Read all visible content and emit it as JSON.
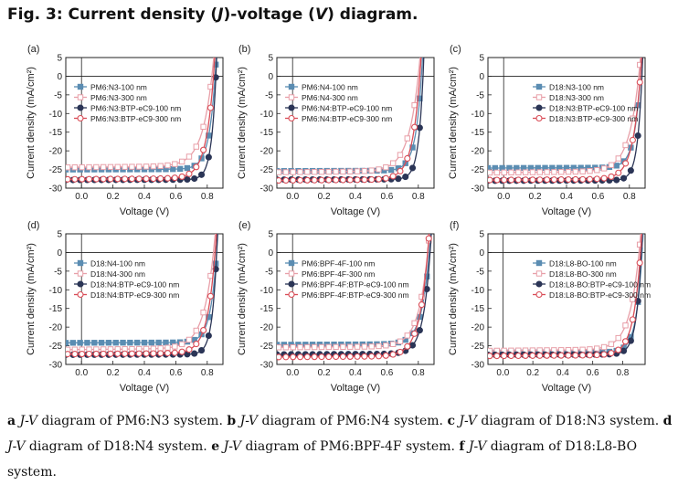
{
  "header": {
    "title_prefix": "Fig. 3: Current density (",
    "title_j": "J",
    "title_mid": ")-voltage (",
    "title_v": "V",
    "title_suffix": ") diagram."
  },
  "caption": {
    "items": [
      {
        "letter": "a",
        "text": "diagram of PM6:N3 system."
      },
      {
        "letter": "b",
        "text": "diagram of PM6:N4 system."
      },
      {
        "letter": "c",
        "text": "diagram of D18:N3 system."
      },
      {
        "letter": "d",
        "text": "diagram of D18:N4 system."
      },
      {
        "letter": "e",
        "text": "diagram of PM6:BPF-4F system."
      },
      {
        "letter": "f",
        "text": "diagram of D18:L8-BO system."
      }
    ],
    "jv": "J-V"
  },
  "colors": {
    "s1": "#5b8db2",
    "s2": "#e89fa8",
    "s3": "#2b3556",
    "s4": "#d94d57",
    "axis": "#222222"
  },
  "chart_data": [
    {
      "panel": "(a)",
      "type": "line",
      "xlabel": "Voltage (V)",
      "ylabel": "Current density (mA/cm²)",
      "xlim": [
        -0.1,
        0.9
      ],
      "ylim": [
        -30,
        5
      ],
      "xticks": [
        0.0,
        0.2,
        0.4,
        0.6,
        0.8
      ],
      "yticks": [
        5,
        0,
        -5,
        -10,
        -15,
        -20,
        -25,
        -30
      ],
      "legend": "top-left",
      "series": [
        {
          "name": "PM6:N3-100 nm",
          "jsc": -25.0,
          "voc": 0.85,
          "slope": 0.12,
          "n": 0.04,
          "marker": "square-filled"
        },
        {
          "name": "PM6:N3-300 nm",
          "jsc": -24.4,
          "voc": 0.83,
          "slope": 0.35,
          "n": 0.065,
          "marker": "square-open"
        },
        {
          "name": "PM6:N3:BTP-eC9-100 nm",
          "jsc": -27.8,
          "voc": 0.855,
          "slope": 0.1,
          "n": 0.03,
          "marker": "circle-filled"
        },
        {
          "name": "PM6:N3:BTP-eC9-300 nm",
          "jsc": -27.6,
          "voc": 0.84,
          "slope": 0.28,
          "n": 0.05,
          "marker": "circle-open"
        }
      ]
    },
    {
      "panel": "(b)",
      "type": "line",
      "xlabel": "Voltage (V)",
      "ylabel": "Current density (mA/cm²)",
      "xlim": [
        -0.1,
        0.9
      ],
      "ylim": [
        -30,
        5
      ],
      "xticks": [
        0.0,
        0.2,
        0.4,
        0.6,
        0.8
      ],
      "yticks": [
        5,
        0,
        -5,
        -10,
        -15,
        -20,
        -25,
        -30
      ],
      "legend": "top-left",
      "series": [
        {
          "name": "PM6:N4-100 nm",
          "jsc": -25.4,
          "voc": 0.82,
          "slope": 0.12,
          "n": 0.04,
          "marker": "square-filled"
        },
        {
          "name": "PM6:N4-300 nm",
          "jsc": -25.7,
          "voc": 0.8,
          "slope": 0.35,
          "n": 0.065,
          "marker": "square-open"
        },
        {
          "name": "PM6:N4:BTP-eC9-100 nm",
          "jsc": -27.7,
          "voc": 0.83,
          "slope": 0.1,
          "n": 0.03,
          "marker": "circle-filled"
        },
        {
          "name": "PM6:N4:BTP-eC9-300 nm",
          "jsc": -27.9,
          "voc": 0.81,
          "slope": 0.28,
          "n": 0.05,
          "marker": "circle-open"
        }
      ]
    },
    {
      "panel": "(c)",
      "type": "line",
      "xlabel": "Voltage (V)",
      "ylabel": "Current density (mA/cm²)",
      "xlim": [
        -0.1,
        0.9
      ],
      "ylim": [
        -30,
        5
      ],
      "xticks": [
        0.0,
        0.2,
        0.4,
        0.6,
        0.8
      ],
      "yticks": [
        5,
        0,
        -5,
        -10,
        -15,
        -20,
        -25,
        -30
      ],
      "legend": "top-right",
      "series": [
        {
          "name": "D18:N3-100 nm",
          "jsc": -24.6,
          "voc": 0.87,
          "slope": 0.12,
          "n": 0.04,
          "marker": "square-filled"
        },
        {
          "name": "D18:N3-300 nm",
          "jsc": -25.8,
          "voc": 0.86,
          "slope": 0.35,
          "n": 0.065,
          "marker": "square-open"
        },
        {
          "name": "D18:N3:BTP-eC9-100 nm",
          "jsc": -28.0,
          "voc": 0.88,
          "slope": 0.1,
          "n": 0.03,
          "marker": "circle-filled"
        },
        {
          "name": "D18:N3:BTP-eC9-300 nm",
          "jsc": -27.8,
          "voc": 0.87,
          "slope": 0.28,
          "n": 0.05,
          "marker": "circle-open"
        }
      ]
    },
    {
      "panel": "(d)",
      "type": "line",
      "xlabel": "Voltage (V)",
      "ylabel": "Current density (mA/cm²)",
      "xlim": [
        -0.1,
        0.9
      ],
      "ylim": [
        -30,
        5
      ],
      "xticks": [
        0.0,
        0.2,
        0.4,
        0.6,
        0.8
      ],
      "yticks": [
        5,
        0,
        -5,
        -10,
        -15,
        -20,
        -25,
        -30
      ],
      "legend": "top-left",
      "series": [
        {
          "name": "D18:N4-100 nm",
          "jsc": -24.2,
          "voc": 0.86,
          "slope": 0.12,
          "n": 0.04,
          "marker": "square-filled"
        },
        {
          "name": "D18:N4-300 nm",
          "jsc": -26.0,
          "voc": 0.84,
          "slope": 0.35,
          "n": 0.065,
          "marker": "square-open"
        },
        {
          "name": "D18:N4:BTP-eC9-100 nm",
          "jsc": -27.4,
          "voc": 0.86,
          "slope": 0.1,
          "n": 0.03,
          "marker": "circle-filled"
        },
        {
          "name": "D18:N4:BTP-eC9-300 nm",
          "jsc": -27.2,
          "voc": 0.85,
          "slope": 0.28,
          "n": 0.05,
          "marker": "circle-open"
        }
      ]
    },
    {
      "panel": "(e)",
      "type": "line",
      "xlabel": "Voltage (V)",
      "ylabel": "Current density (mA/cm²)",
      "xlim": [
        -0.1,
        0.9
      ],
      "ylim": [
        -30,
        5
      ],
      "xticks": [
        0.0,
        0.2,
        0.4,
        0.6,
        0.8
      ],
      "yticks": [
        5,
        0,
        -5,
        -10,
        -15,
        -20,
        -25,
        -30
      ],
      "legend": "top-left",
      "series": [
        {
          "name": "PM6:BPF-4F-100 nm",
          "jsc": -24.7,
          "voc": 0.87,
          "slope": 0.15,
          "n": 0.05,
          "marker": "square-filled"
        },
        {
          "name": "PM6:BPF-4F-300 nm",
          "jsc": -25.4,
          "voc": 0.86,
          "slope": 0.3,
          "n": 0.06,
          "marker": "square-open"
        },
        {
          "name": "PM6:BPF-4F:BTP-eC9-100 nm",
          "jsc": -27.3,
          "voc": 0.875,
          "slope": 0.18,
          "n": 0.045,
          "marker": "circle-filled"
        },
        {
          "name": "PM6:BPF-4F:BTP-eC9-300 nm",
          "jsc": -28.0,
          "voc": 0.86,
          "slope": 0.25,
          "n": 0.055,
          "marker": "circle-open"
        }
      ]
    },
    {
      "panel": "(f)",
      "type": "line",
      "xlabel": "Voltage (V)",
      "ylabel": "Current density (mA/cm²)",
      "xlim": [
        -0.1,
        0.95
      ],
      "ylim": [
        -30,
        5
      ],
      "xticks": [
        0.0,
        0.2,
        0.4,
        0.6,
        0.8
      ],
      "yticks": [
        5,
        0,
        -5,
        -10,
        -15,
        -20,
        -25,
        -30
      ],
      "legend": "top-right",
      "series": [
        {
          "name": "D18:L8-BO-100 nm",
          "jsc": -26.8,
          "voc": 0.93,
          "slope": 0.12,
          "n": 0.04,
          "marker": "square-filled"
        },
        {
          "name": "D18:L8-BO-300 nm",
          "jsc": -26.3,
          "voc": 0.91,
          "slope": 0.35,
          "n": 0.065,
          "marker": "square-open"
        },
        {
          "name": "D18:L8-BO:BTP-eC9-100 nm",
          "jsc": -27.4,
          "voc": 0.925,
          "slope": 0.1,
          "n": 0.035,
          "marker": "circle-filled"
        },
        {
          "name": "D18:L8-BO:BTP-eC9-300 nm",
          "jsc": -27.7,
          "voc": 0.92,
          "slope": 0.25,
          "n": 0.05,
          "marker": "circle-open"
        }
      ]
    }
  ]
}
